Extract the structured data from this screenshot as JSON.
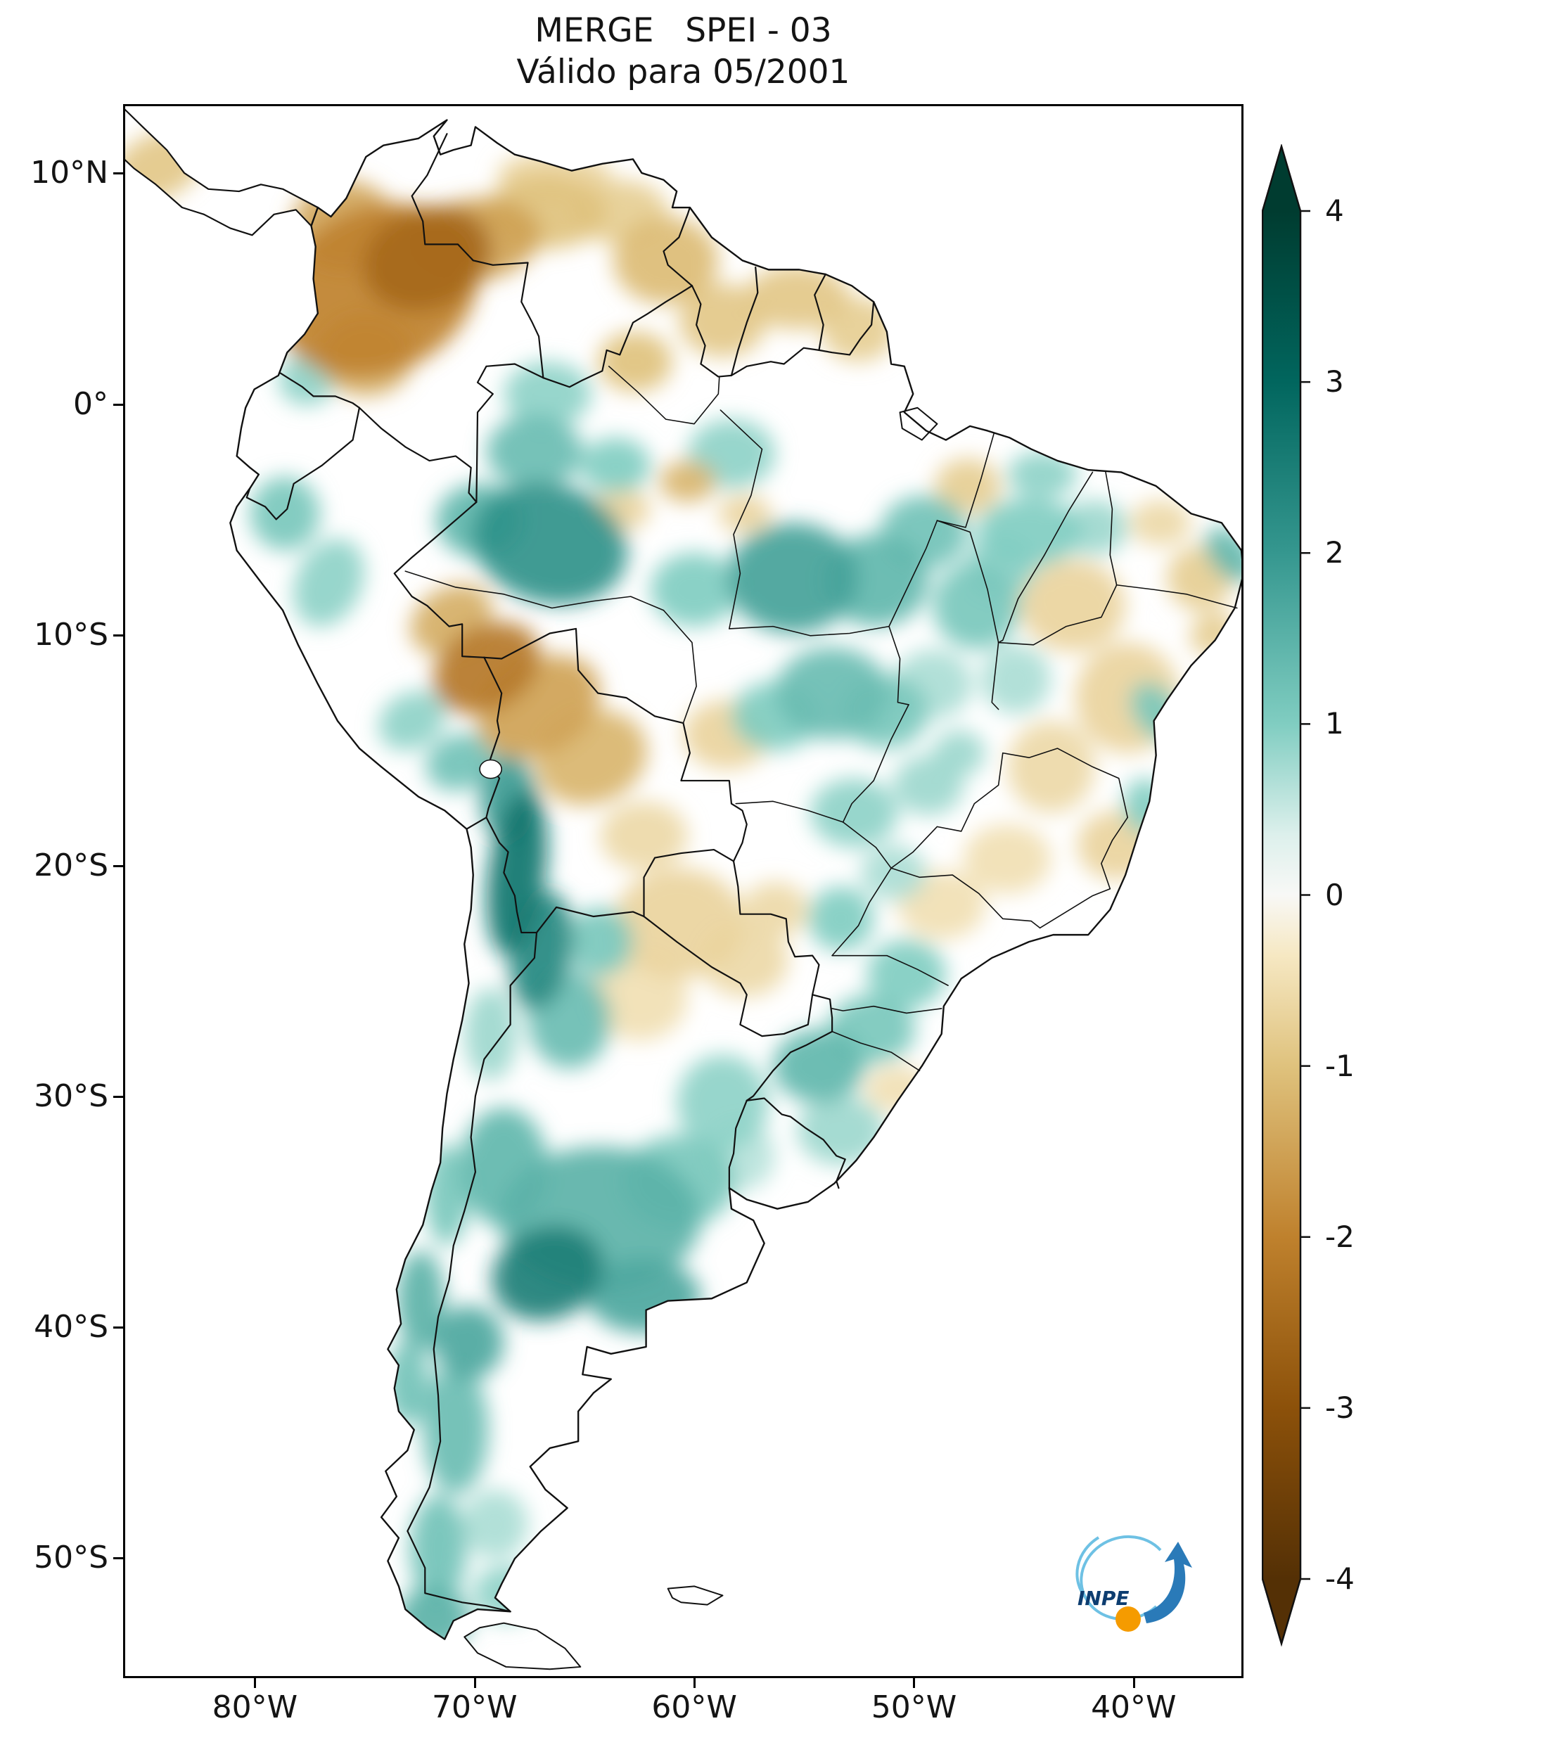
{
  "chart_data": {
    "type": "heatmap",
    "projection": "equirectangular",
    "region": "South America",
    "title": "MERGE   SPEI - 03",
    "subtitle": "Válido para 05/2001",
    "grid": false,
    "lon_ticks": [
      {
        "value": -80,
        "label": "80°W"
      },
      {
        "value": -70,
        "label": "70°W"
      },
      {
        "value": -60,
        "label": "60°W"
      },
      {
        "value": -50,
        "label": "50°W"
      },
      {
        "value": -40,
        "label": "40°W"
      }
    ],
    "lat_ticks": [
      {
        "value": 10,
        "label": "10°N"
      },
      {
        "value": 0,
        "label": "0°"
      },
      {
        "value": -10,
        "label": "10°S"
      },
      {
        "value": -20,
        "label": "20°S"
      },
      {
        "value": -30,
        "label": "30°S"
      },
      {
        "value": -40,
        "label": "40°S"
      },
      {
        "value": -50,
        "label": "50°S"
      }
    ],
    "lon_range": [
      -86,
      -35
    ],
    "lat_range": [
      -55.2,
      13
    ],
    "colorbar": {
      "min": -4,
      "max": 4,
      "extend": "both",
      "ticks": [
        4,
        3,
        2,
        1,
        0,
        -1,
        -2,
        -3,
        -4
      ],
      "tick_labels": [
        "4",
        "3",
        "2",
        "1",
        "0",
        "-1",
        "-2",
        "-3",
        "-4"
      ],
      "palette": [
        [
          -4,
          "#543005"
        ],
        [
          -3,
          "#8c510a"
        ],
        [
          -2,
          "#bf812d"
        ],
        [
          -1,
          "#dfc27d"
        ],
        [
          -0.35,
          "#f6e8c3"
        ],
        [
          0,
          "#f8f8f6"
        ],
        [
          0.35,
          "#ddf0ec"
        ],
        [
          1,
          "#80cdc1"
        ],
        [
          2,
          "#35978f"
        ],
        [
          3,
          "#01665e"
        ],
        [
          4,
          "#003c30"
        ]
      ]
    },
    "anomaly_patches": [
      [
        -74.5,
        5.0,
        4.8,
        3.6,
        -25,
        -2.0
      ],
      [
        -72.2,
        6.4,
        3.0,
        2.2,
        -20,
        -2.5
      ],
      [
        -76.0,
        7.8,
        2.4,
        2.0,
        0,
        -1.4
      ],
      [
        -75.0,
        2.2,
        2.2,
        1.8,
        0,
        -1.3
      ],
      [
        -70.0,
        7.2,
        3.0,
        1.8,
        -8,
        -1.5
      ],
      [
        -66.8,
        8.4,
        2.8,
        1.6,
        0,
        -1.0
      ],
      [
        -66.4,
        10.0,
        2.6,
        1.0,
        0,
        -0.7
      ],
      [
        -63.4,
        8.4,
        2.2,
        1.4,
        0,
        -0.8
      ],
      [
        -61.3,
        6.3,
        2.4,
        1.9,
        0,
        -1.1
      ],
      [
        -62.7,
        1.9,
        1.7,
        1.3,
        0,
        -1.0
      ],
      [
        -58.7,
        3.7,
        2.0,
        1.6,
        0,
        -0.9
      ],
      [
        -55.3,
        4.7,
        2.4,
        1.4,
        0,
        -0.9
      ],
      [
        -52.5,
        3.3,
        1.7,
        1.4,
        0,
        -0.8
      ],
      [
        -60.3,
        -3.3,
        1.3,
        0.9,
        0,
        -1.2
      ],
      [
        -57.7,
        -4.7,
        1.2,
        0.8,
        0,
        -0.7
      ],
      [
        -63.3,
        -4.5,
        1.3,
        0.9,
        0,
        -0.7
      ],
      [
        -69.5,
        -11.4,
        2.6,
        1.8,
        -30,
        -2.2
      ],
      [
        -67.1,
        -13.1,
        3.0,
        2.0,
        -30,
        -1.5
      ],
      [
        -64.7,
        -15.3,
        2.6,
        2.0,
        -20,
        -1.2
      ],
      [
        -71.1,
        -9.3,
        2.0,
        1.4,
        -30,
        -1.3
      ],
      [
        -60.7,
        -22.5,
        3.0,
        2.4,
        0,
        -0.7
      ],
      [
        -57.7,
        -24.1,
        2.0,
        1.6,
        0,
        -0.6
      ],
      [
        -62.5,
        -25.7,
        2.2,
        1.9,
        0,
        -0.5
      ],
      [
        -62.3,
        -18.7,
        2.0,
        1.5,
        0,
        -0.6
      ],
      [
        -58.5,
        -14.3,
        2.0,
        1.5,
        0,
        -0.7
      ],
      [
        -47.5,
        -3.5,
        1.5,
        1.2,
        0,
        -0.8
      ],
      [
        -42.7,
        -8.7,
        2.4,
        2.0,
        0,
        -0.7
      ],
      [
        -40.2,
        -12.7,
        2.4,
        2.4,
        0,
        -0.7
      ],
      [
        -43.7,
        -15.7,
        2.0,
        2.0,
        0,
        -0.6
      ],
      [
        -40.7,
        -19.1,
        1.8,
        1.5,
        0,
        -0.7
      ],
      [
        -45.7,
        -19.7,
        2.0,
        1.5,
        0,
        -0.5
      ],
      [
        -48.7,
        -21.7,
        2.0,
        1.5,
        0,
        -0.5
      ],
      [
        -36.9,
        -7.5,
        1.5,
        1.4,
        0,
        -0.8
      ],
      [
        -36.3,
        -9.9,
        1.1,
        0.9,
        -40,
        -0.8
      ],
      [
        -38.7,
        -5.1,
        1.4,
        1.0,
        0,
        -0.6
      ],
      [
        -50.7,
        -29.7,
        1.5,
        1.0,
        0,
        -0.5
      ],
      [
        -56.3,
        -21.9,
        1.5,
        1.2,
        0,
        -0.6
      ],
      [
        -84.5,
        10.4,
        2.2,
        1.4,
        -25,
        -0.9
      ],
      [
        -66.6,
        -6.0,
        3.6,
        2.6,
        15,
        2.1
      ],
      [
        -69.8,
        -5.0,
        2.0,
        1.6,
        0,
        1.4
      ],
      [
        -63.6,
        -2.6,
        1.6,
        1.2,
        0,
        1.0
      ],
      [
        -67.3,
        -2.0,
        2.2,
        1.6,
        0,
        1.3
      ],
      [
        -66.7,
        0.5,
        2.0,
        1.4,
        0,
        0.9
      ],
      [
        -58.3,
        -2.1,
        2.0,
        1.5,
        0,
        0.9
      ],
      [
        -55.5,
        -7.5,
        3.0,
        2.4,
        0,
        1.8
      ],
      [
        -51.7,
        -7.6,
        2.4,
        2.0,
        0,
        1.4
      ],
      [
        -49.5,
        -5.5,
        2.0,
        1.6,
        0,
        1.2
      ],
      [
        -47.1,
        -8.7,
        2.0,
        1.9,
        0,
        1.1
      ],
      [
        -44.7,
        -5.5,
        2.4,
        1.5,
        0,
        1.0
      ],
      [
        -44.1,
        -3.0,
        1.6,
        1.0,
        0,
        0.9
      ],
      [
        -41.7,
        -5.3,
        1.5,
        1.2,
        0,
        0.8
      ],
      [
        -46.0,
        -7.0,
        1.6,
        1.3,
        0,
        0.9
      ],
      [
        -60.0,
        -8.0,
        2.0,
        1.6,
        0,
        1.0
      ],
      [
        -53.7,
        -12.5,
        2.6,
        2.0,
        0,
        1.3
      ],
      [
        -56.3,
        -13.5,
        2.0,
        1.5,
        0,
        1.0
      ],
      [
        -51.3,
        -13.3,
        2.0,
        1.6,
        0,
        1.1
      ],
      [
        -49.1,
        -12.1,
        1.8,
        1.5,
        0,
        0.7
      ],
      [
        -52.7,
        -17.7,
        2.0,
        1.5,
        0,
        0.9
      ],
      [
        -49.3,
        -16.5,
        1.6,
        1.3,
        0,
        0.8
      ],
      [
        -47.9,
        -15.1,
        1.2,
        1.0,
        0,
        0.8
      ],
      [
        -45.3,
        -11.9,
        1.6,
        1.5,
        0,
        0.7
      ],
      [
        -38.9,
        -13.3,
        1.0,
        1.4,
        -35,
        1.1
      ],
      [
        -39.4,
        -17.4,
        1.0,
        1.2,
        0,
        1.0
      ],
      [
        -35.5,
        -6.5,
        0.9,
        1.4,
        -40,
        1.4
      ],
      [
        -68.1,
        -20.3,
        1.3,
        3.6,
        8,
        2.7
      ],
      [
        -67.0,
        -23.7,
        1.4,
        2.6,
        10,
        2.3
      ],
      [
        -68.5,
        -17.1,
        1.3,
        1.9,
        0,
        1.9
      ],
      [
        -70.7,
        -15.5,
        1.6,
        1.2,
        -20,
        1.2
      ],
      [
        -72.9,
        -13.7,
        1.6,
        1.2,
        -30,
        0.9
      ],
      [
        -78.7,
        -4.7,
        1.6,
        1.6,
        0,
        1.1
      ],
      [
        -76.7,
        -7.7,
        1.5,
        2.0,
        25,
        0.9
      ],
      [
        -77.7,
        1.1,
        1.3,
        1.1,
        0,
        0.9
      ],
      [
        -65.7,
        -26.7,
        1.9,
        2.1,
        0,
        1.3
      ],
      [
        -64.3,
        -23.3,
        1.5,
        1.5,
        0,
        1.1
      ],
      [
        -68.7,
        -33.1,
        2.0,
        2.6,
        0,
        1.4
      ],
      [
        -64.3,
        -35.3,
        4.6,
        3.1,
        0,
        1.5
      ],
      [
        -66.7,
        -37.7,
        2.6,
        2.0,
        -20,
        2.5
      ],
      [
        -62.3,
        -38.7,
        2.6,
        1.6,
        0,
        1.7
      ],
      [
        -60.7,
        -33.7,
        2.6,
        2.0,
        0,
        1.1
      ],
      [
        -58.7,
        -30.3,
        2.1,
        2.1,
        0,
        0.9
      ],
      [
        -57.9,
        -32.6,
        1.6,
        1.5,
        0,
        0.6
      ],
      [
        -54.3,
        -28.7,
        2.1,
        1.6,
        0,
        1.4
      ],
      [
        -51.9,
        -27.1,
        2.0,
        1.5,
        0,
        1.1
      ],
      [
        -50.3,
        -24.7,
        1.8,
        1.5,
        0,
        1.0
      ],
      [
        -53.3,
        -31.5,
        2.0,
        1.5,
        0,
        0.8
      ],
      [
        -53.3,
        -22.3,
        1.5,
        1.4,
        0,
        1.0
      ],
      [
        -50.9,
        -20.3,
        1.5,
        1.2,
        0,
        0.7
      ],
      [
        -71.3,
        -34.3,
        1.0,
        2.2,
        0,
        1.1
      ],
      [
        -72.5,
        -38.9,
        1.1,
        2.2,
        0,
        1.5
      ],
      [
        -73.1,
        -42.5,
        1.0,
        1.8,
        0,
        1.2
      ],
      [
        -70.9,
        -44.5,
        1.5,
        2.8,
        0,
        1.3
      ],
      [
        -70.3,
        -40.7,
        1.6,
        1.6,
        0,
        1.7
      ],
      [
        -71.7,
        -49.7,
        1.3,
        2.4,
        0,
        1.2
      ],
      [
        -71.9,
        -52.7,
        1.7,
        1.4,
        0,
        1.5
      ],
      [
        -69.1,
        -48.6,
        1.5,
        1.5,
        0,
        0.7
      ],
      [
        -68.6,
        -51.6,
        1.5,
        1.2,
        0,
        0.9
      ],
      [
        -69.3,
        -27.3,
        1.2,
        2.0,
        0,
        0.8
      ]
    ]
  },
  "logo": {
    "text": "INPE",
    "navy": "#0d3d70",
    "light_blue": "#6ec1e4",
    "arrow_blue": "#2a7ab8",
    "orange": "#f59b00"
  }
}
